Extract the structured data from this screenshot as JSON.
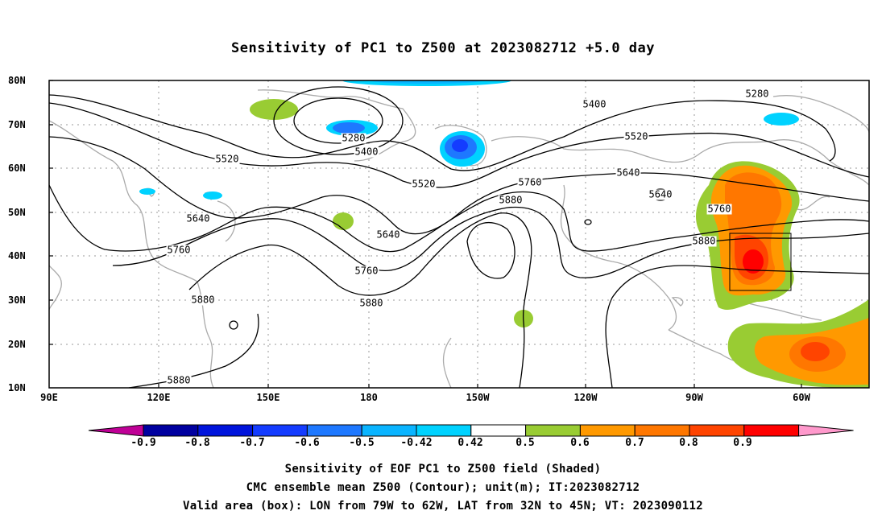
{
  "title": "Sensitivity of PC1 to Z500 at 2023082712 +5.0 day",
  "map": {
    "lat_labels": [
      "80N",
      "70N",
      "60N",
      "50N",
      "40N",
      "30N",
      "20N",
      "10N"
    ],
    "lon_labels": [
      "90E",
      "120E",
      "150E",
      "180",
      "150W",
      "120W",
      "90W",
      "60W"
    ],
    "contour_labels": [
      "5280",
      "5280",
      "5400",
      "5400",
      "5520",
      "5520",
      "5520",
      "5640",
      "5640",
      "5640",
      "5640",
      "5760",
      "5760",
      "5760",
      "5760",
      "5880",
      "5880",
      "5880",
      "5880",
      "5880"
    ],
    "valid_area": {
      "lon_from": "79W",
      "lon_to": "62W",
      "lat_from": "32N",
      "lat_to": "45N"
    }
  },
  "colorbar": {
    "labels": [
      "-0.9",
      "-0.8",
      "-0.7",
      "-0.6",
      "-0.5",
      "-0.42",
      "0.42",
      "0.5",
      "0.6",
      "0.7",
      "0.8",
      "0.9"
    ],
    "colors": [
      "#bf0096",
      "#0000a0",
      "#0014dc",
      "#143cff",
      "#1e78ff",
      "#0ab4ff",
      "#00d2ff",
      "#ffffff",
      "#99cc33",
      "#ff9900",
      "#ff7700",
      "#ff4400",
      "#ff0000",
      "#ff99cc"
    ]
  },
  "captions": {
    "line1": "Sensitivity of EOF PC1 to Z500 field (Shaded)",
    "line2": "CMC ensemble mean Z500 (Contour); unit(m); IT:2023082712",
    "line3": "Valid area (box): LON from 79W to 62W, LAT from 32N to 45N; VT: 2023090112"
  }
}
